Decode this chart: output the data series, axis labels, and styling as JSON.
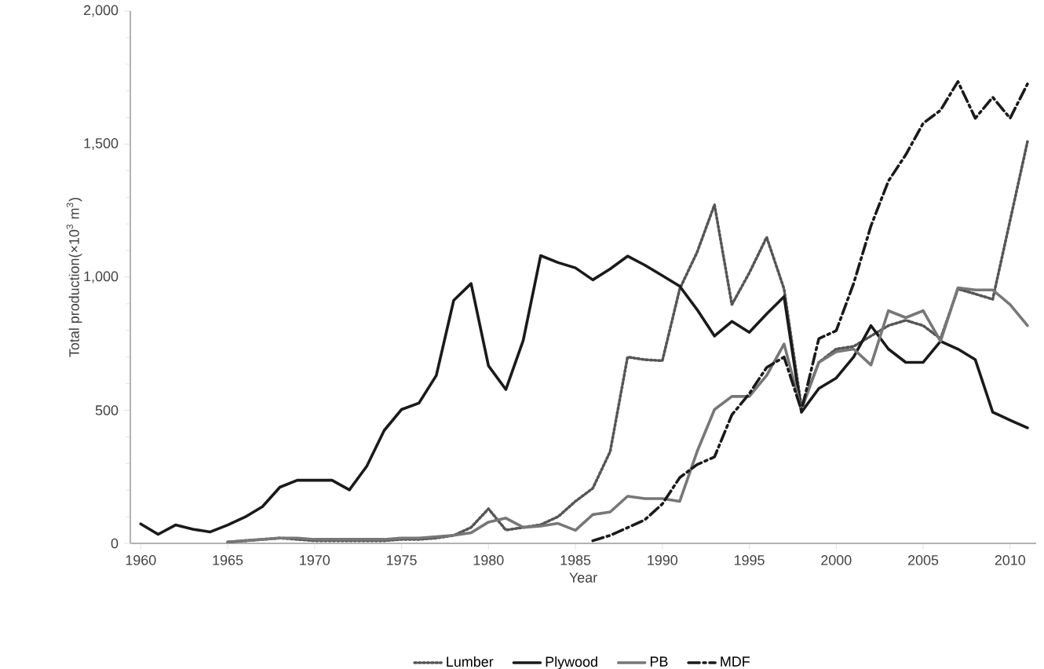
{
  "chart_data": {
    "type": "line",
    "xlabel": "Year",
    "ylabel": "Total production(×10$^{3}$ m$^{3}$)",
    "xlim": [
      1959.4,
      2011.5
    ],
    "xticks": [
      1960,
      1965,
      1970,
      1975,
      1980,
      1985,
      1990,
      1995,
      2000,
      2005,
      2010
    ],
    "ylim": [
      0,
      2000
    ],
    "yticks": [
      0,
      500,
      {
        "value": 1000,
        "label": "1,000"
      },
      {
        "value": 1500,
        "label": "1,500"
      },
      {
        "value": 2000,
        "label": "2,000"
      }
    ],
    "grid": false,
    "legend": "bottom",
    "marker": "none",
    "series": [
      {
        "name": "Lumber",
        "color": "#555555",
        "line_style": "dotted",
        "x": [
          1965,
          1966,
          1967,
          1968,
          1969,
          1970,
          1971,
          1972,
          1973,
          1974,
          1975,
          1976,
          1977,
          1978,
          1979,
          1980,
          1981,
          1982,
          1983,
          1984,
          1985,
          1986,
          1987,
          1988,
          1989,
          1990,
          1991,
          1992,
          1993,
          1994,
          1995,
          1996,
          1997,
          1998,
          1999,
          2000,
          2001,
          2002,
          2003,
          2004,
          2005,
          2006,
          2007,
          2008,
          2009,
          2010,
          2011
        ],
        "values": [
          5,
          10,
          15,
          20,
          15,
          10,
          10,
          10,
          10,
          10,
          15,
          15,
          20,
          30,
          60,
          130,
          50,
          60,
          70,
          100,
          158,
          207,
          345,
          700,
          690,
          686,
          956,
          1094,
          1272,
          897,
          1016,
          1150,
          956,
          513,
          680,
          730,
          740,
          779,
          818,
          838,
          818,
          769,
          956,
          937,
          917,
          1213,
          1509
        ]
      },
      {
        "name": "Plywood",
        "color": "#1a1a1a",
        "line_style": "solid",
        "x": [
          1960,
          1961,
          1962,
          1963,
          1964,
          1965,
          1966,
          1967,
          1968,
          1969,
          1970,
          1971,
          1972,
          1973,
          1974,
          1975,
          1976,
          1977,
          1978,
          1979,
          1980,
          1981,
          1982,
          1983,
          1984,
          1985,
          1986,
          1987,
          1988,
          1989,
          1990,
          1991,
          1992,
          1993,
          1994,
          1995,
          1996,
          1997,
          1998,
          1999,
          2000,
          2001,
          2002,
          2003,
          2004,
          2005,
          2006,
          2007,
          2008,
          2009,
          2010,
          2011
        ],
        "values": [
          73,
          34,
          69,
          53,
          43,
          69,
          99,
          138,
          211,
          237,
          237,
          237,
          201,
          290,
          424,
          503,
          527,
          631,
          913,
          976,
          667,
          578,
          763,
          1081,
          1055,
          1035,
          990,
          1031,
          1079,
          1045,
          1006,
          966,
          878,
          779,
          834,
          793,
          862,
          927,
          493,
          582,
          621,
          700,
          818,
          730,
          680,
          680,
          759,
          730,
          690,
          493,
          463,
          434
        ]
      },
      {
        "name": "PB",
        "color": "#777777",
        "line_style": "solid",
        "x": [
          1965,
          1966,
          1967,
          1968,
          1969,
          1970,
          1971,
          1972,
          1973,
          1974,
          1975,
          1976,
          1977,
          1978,
          1979,
          1980,
          1981,
          1982,
          1983,
          1984,
          1985,
          1986,
          1987,
          1988,
          1989,
          1990,
          1991,
          1992,
          1993,
          1994,
          1995,
          1996,
          1997,
          1998,
          1999,
          2000,
          2001,
          2002,
          2003,
          2004,
          2005,
          2006,
          2007,
          2008,
          2009,
          2010,
          2011
        ],
        "values": [
          5,
          10,
          15,
          20,
          20,
          15,
          15,
          15,
          15,
          15,
          20,
          20,
          25,
          30,
          40,
          80,
          95,
          60,
          65,
          75,
          49,
          108,
          118,
          177,
          168,
          168,
          158,
          345,
          503,
          552,
          552,
          631,
          749,
          503,
          680,
          720,
          730,
          670,
          874,
          848,
          874,
          759,
          960,
          952,
          952,
          897,
          818
        ]
      },
      {
        "name": "MDF",
        "color": "#1a1a1a",
        "line_style": "dashed",
        "x": [
          1986,
          1987,
          1988,
          1989,
          1990,
          1991,
          1992,
          1993,
          1994,
          1995,
          1996,
          1997,
          1998,
          1999,
          2000,
          2001,
          2002,
          2003,
          2004,
          2005,
          2006,
          2007,
          2008,
          2009,
          2010,
          2011
        ],
        "values": [
          10,
          30,
          59,
          89,
          148,
          247,
          296,
          325,
          483,
          562,
          661,
          700,
          500,
          769,
          799,
          976,
          1193,
          1361,
          1460,
          1578,
          1627,
          1735,
          1597,
          1676,
          1597,
          1726
        ]
      }
    ]
  }
}
